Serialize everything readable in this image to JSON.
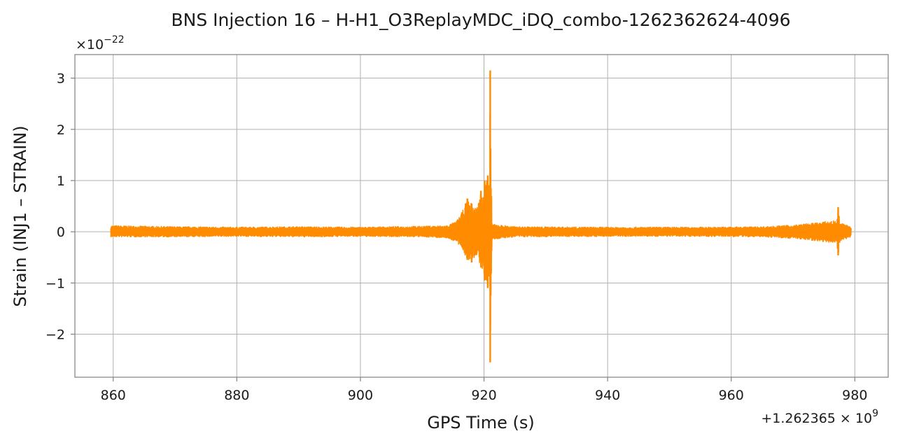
{
  "chart_data": {
    "type": "line",
    "title": "BNS Injection 16 – H-H1_O3ReplayMDC_iDQ_combo-1262362624-4096",
    "xlabel": "GPS Time (s)",
    "ylabel": "Strain (INJ1 – STRAIN)",
    "x_offset_label": "+1.262365 × 10",
    "x_offset_exp": "9",
    "y_scale_label": "×10",
    "y_scale_exp": "−22",
    "xlim": [
      853.8,
      985.4
    ],
    "ylim": [
      -2.84,
      3.46
    ],
    "x_ticks": [
      860,
      880,
      900,
      920,
      940,
      960,
      980
    ],
    "x_tick_labels": [
      "860",
      "880",
      "900",
      "920",
      "940",
      "960",
      "980"
    ],
    "y_ticks": [
      -2,
      -1,
      0,
      1,
      2,
      3
    ],
    "y_tick_labels": [
      "−2",
      "−1",
      "0",
      "1",
      "2",
      "3"
    ],
    "grid": true,
    "line_color": "#ff8c00",
    "series": [
      {
        "x_start": 859.6,
        "x_end": 979.4,
        "envelope": [
          [
            859.6,
            -0.1,
            0.12
          ],
          [
            870.0,
            -0.1,
            0.1
          ],
          [
            880.0,
            -0.09,
            0.09
          ],
          [
            890.0,
            -0.1,
            0.1
          ],
          [
            900.0,
            -0.09,
            0.09
          ],
          [
            910.0,
            -0.1,
            0.11
          ],
          [
            914.0,
            -0.12,
            0.12
          ],
          [
            915.5,
            -0.2,
            0.2
          ],
          [
            916.5,
            -0.35,
            0.4
          ],
          [
            917.3,
            -0.55,
            0.65
          ],
          [
            918.0,
            -0.6,
            0.55
          ],
          [
            918.8,
            -0.45,
            0.45
          ],
          [
            919.5,
            -0.7,
            0.8
          ],
          [
            920.1,
            -0.95,
            1.0
          ],
          [
            920.6,
            -1.1,
            1.1
          ],
          [
            920.9,
            -0.8,
            0.9
          ],
          [
            921.0,
            -2.55,
            3.15
          ],
          [
            921.3,
            -0.15,
            0.15
          ],
          [
            925.0,
            -0.1,
            0.1
          ],
          [
            940.0,
            -0.09,
            0.09
          ],
          [
            955.0,
            -0.09,
            0.09
          ],
          [
            965.0,
            -0.1,
            0.1
          ],
          [
            970.0,
            -0.13,
            0.13
          ],
          [
            974.0,
            -0.18,
            0.18
          ],
          [
            977.0,
            -0.22,
            0.22
          ],
          [
            977.3,
            -0.46,
            0.48
          ],
          [
            977.6,
            -0.18,
            0.18
          ],
          [
            979.4,
            -0.1,
            0.1
          ]
        ]
      }
    ]
  }
}
